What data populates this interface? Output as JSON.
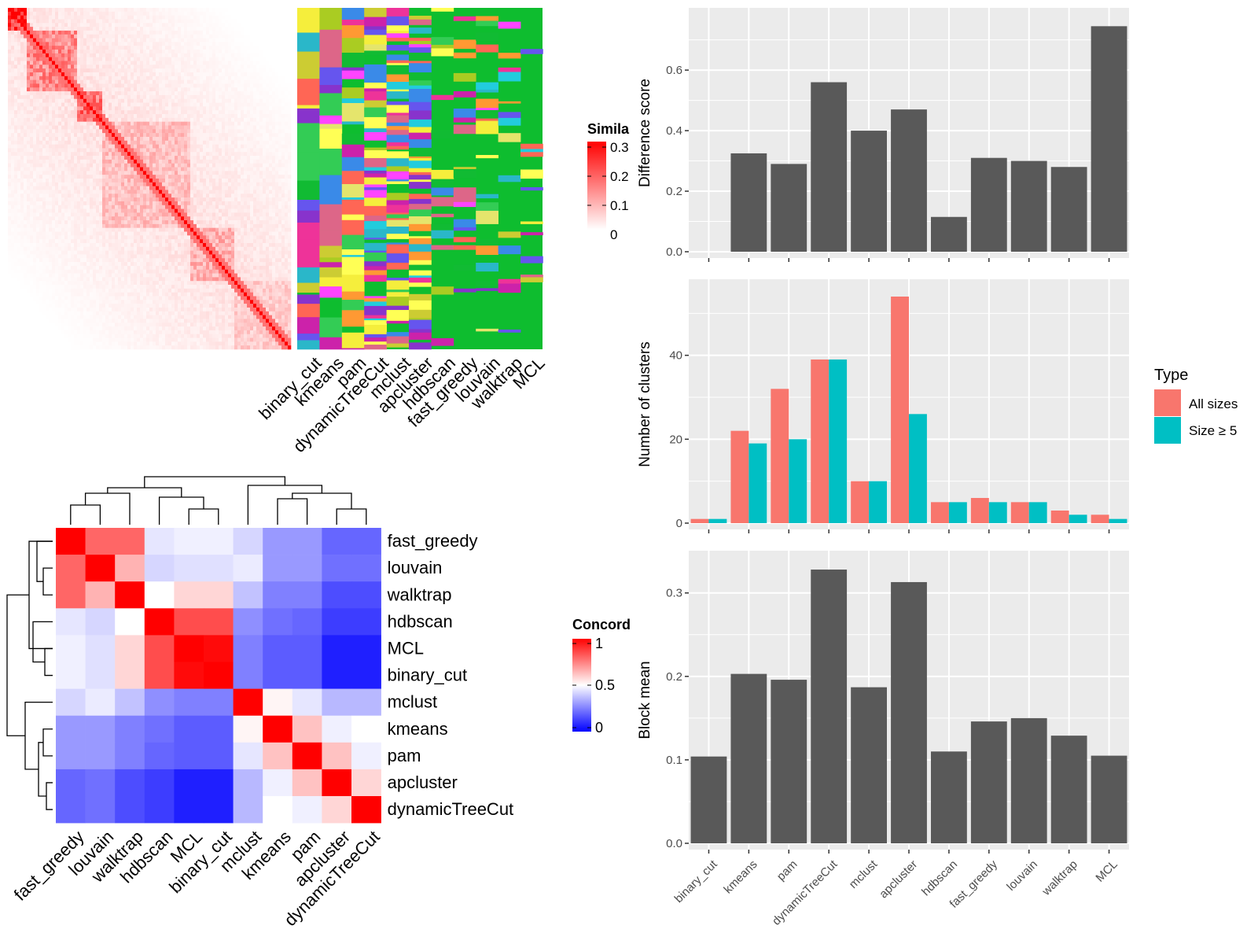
{
  "colors": {
    "panel_bg": "#ebebeb",
    "grid": "#ffffff",
    "bar_dark": "#595959",
    "all_sizes": "#f8766d",
    "size5": "#00bfc4",
    "heat_red": "#ff0000",
    "heat_white": "#ffffff",
    "heat_blue": "#0000ff",
    "cluster_bg": "#0ebd2f"
  },
  "similarity_heatmap": {
    "legend_title": "Simila",
    "legend_labels": [
      "0.3",
      "0.2",
      "0.1",
      "0"
    ]
  },
  "cluster_annotation": {
    "methods": [
      "binary_cut",
      "kmeans",
      "pam",
      "dynamicTreeCut",
      "mclust",
      "apcluster",
      "hdbscan",
      "fast_greedy",
      "louvain",
      "walktrap",
      "MCL"
    ],
    "palette": [
      "#ffff55",
      "#ff44ff",
      "#e5e56c",
      "#11bb33",
      "#2ab7c9",
      "#dd6688",
      "#f5ee3c",
      "#ff6655",
      "#8833cc",
      "#ee3399",
      "#33cc55",
      "#3a8ae8",
      "#cc22aa",
      "#aacc22",
      "#ff9933",
      "#22ccdd",
      "#6655ee",
      "#cccc33"
    ]
  },
  "concordance": {
    "legend_title": "Concord",
    "legend_labels": [
      "1",
      "0.5",
      "0"
    ],
    "row_labels": [
      "fast_greedy",
      "louvain",
      "walktrap",
      "hdbscan",
      "MCL",
      "binary_cut",
      "mclust",
      "kmeans",
      "pam",
      "apcluster",
      "dynamicTreeCut"
    ],
    "col_labels": [
      "fast_greedy",
      "louvain",
      "walktrap",
      "hdbscan",
      "MCL",
      "binary_cut",
      "mclust",
      "kmeans",
      "pam",
      "apcluster",
      "dynamicTreeCut"
    ],
    "matrix": [
      [
        1.0,
        0.8,
        0.8,
        0.45,
        0.47,
        0.47,
        0.42,
        0.3,
        0.3,
        0.2,
        0.2
      ],
      [
        0.8,
        1.0,
        0.65,
        0.42,
        0.44,
        0.44,
        0.46,
        0.3,
        0.3,
        0.22,
        0.22
      ],
      [
        0.8,
        0.65,
        1.0,
        0.5,
        0.58,
        0.58,
        0.38,
        0.25,
        0.25,
        0.15,
        0.15
      ],
      [
        0.45,
        0.42,
        0.5,
        1.0,
        0.85,
        0.85,
        0.28,
        0.22,
        0.2,
        0.12,
        0.12
      ],
      [
        0.47,
        0.44,
        0.58,
        0.85,
        1.0,
        0.98,
        0.25,
        0.18,
        0.18,
        0.06,
        0.06
      ],
      [
        0.47,
        0.44,
        0.58,
        0.85,
        0.98,
        1.0,
        0.25,
        0.18,
        0.18,
        0.06,
        0.06
      ],
      [
        0.42,
        0.46,
        0.38,
        0.28,
        0.25,
        0.25,
        1.0,
        0.52,
        0.45,
        0.36,
        0.36
      ],
      [
        0.3,
        0.3,
        0.25,
        0.22,
        0.18,
        0.18,
        0.52,
        1.0,
        0.62,
        0.47,
        0.5
      ],
      [
        0.3,
        0.3,
        0.25,
        0.2,
        0.18,
        0.18,
        0.45,
        0.62,
        1.0,
        0.62,
        0.47
      ],
      [
        0.2,
        0.22,
        0.15,
        0.12,
        0.06,
        0.06,
        0.36,
        0.47,
        0.62,
        1.0,
        0.58
      ],
      [
        0.2,
        0.22,
        0.15,
        0.12,
        0.06,
        0.06,
        0.36,
        0.5,
        0.47,
        0.58,
        1.0
      ]
    ]
  },
  "legend_type": {
    "title": "Type",
    "entries": [
      "All sizes",
      "Size ≥ 5"
    ]
  },
  "chart_data": [
    {
      "type": "bar",
      "categories": [
        "binary_cut",
        "kmeans",
        "pam",
        "dynamicTreeCut",
        "mclust",
        "apcluster",
        "hdbscan",
        "fast_greedy",
        "louvain",
        "walktrap",
        "MCL"
      ],
      "values": [
        0.0,
        0.325,
        0.29,
        0.56,
        0.4,
        0.47,
        0.115,
        0.31,
        0.3,
        0.28,
        0.745
      ],
      "ylabel": "Difference score",
      "ylim": [
        0,
        0.79
      ],
      "yticks": [
        0.0,
        0.2,
        0.4,
        0.6
      ],
      "ytick_labels": [
        "0.0",
        "0.2",
        "0.4",
        "0.6"
      ],
      "grid": true
    },
    {
      "type": "bar",
      "categories": [
        "binary_cut",
        "kmeans",
        "pam",
        "dynamicTreeCut",
        "mclust",
        "apcluster",
        "hdbscan",
        "fast_greedy",
        "louvain",
        "walktrap",
        "MCL"
      ],
      "series": [
        {
          "name": "All sizes",
          "values": [
            1,
            22,
            32,
            39,
            10,
            54,
            5,
            6,
            5,
            3,
            2
          ]
        },
        {
          "name": "Size ≥ 5",
          "values": [
            1,
            19,
            20,
            39,
            10,
            26,
            5,
            5,
            5,
            2,
            1
          ]
        }
      ],
      "ylabel": "Number of clusters",
      "ylim": [
        0,
        57
      ],
      "yticks": [
        0,
        20,
        40
      ],
      "ytick_labels": [
        "0",
        "20",
        "40"
      ],
      "legend": "right",
      "grid": true
    },
    {
      "type": "bar",
      "categories": [
        "binary_cut",
        "kmeans",
        "pam",
        "dynamicTreeCut",
        "mclust",
        "apcluster",
        "hdbscan",
        "fast_greedy",
        "louvain",
        "walktrap",
        "MCL"
      ],
      "values": [
        0.104,
        0.203,
        0.196,
        0.328,
        0.187,
        0.313,
        0.11,
        0.146,
        0.15,
        0.129,
        0.105
      ],
      "ylabel": "Block mean",
      "ylim": [
        0,
        0.345
      ],
      "yticks": [
        0.0,
        0.1,
        0.2,
        0.3
      ],
      "ytick_labels": [
        "0.0",
        "0.1",
        "0.2",
        "0.3"
      ],
      "grid": true
    }
  ]
}
